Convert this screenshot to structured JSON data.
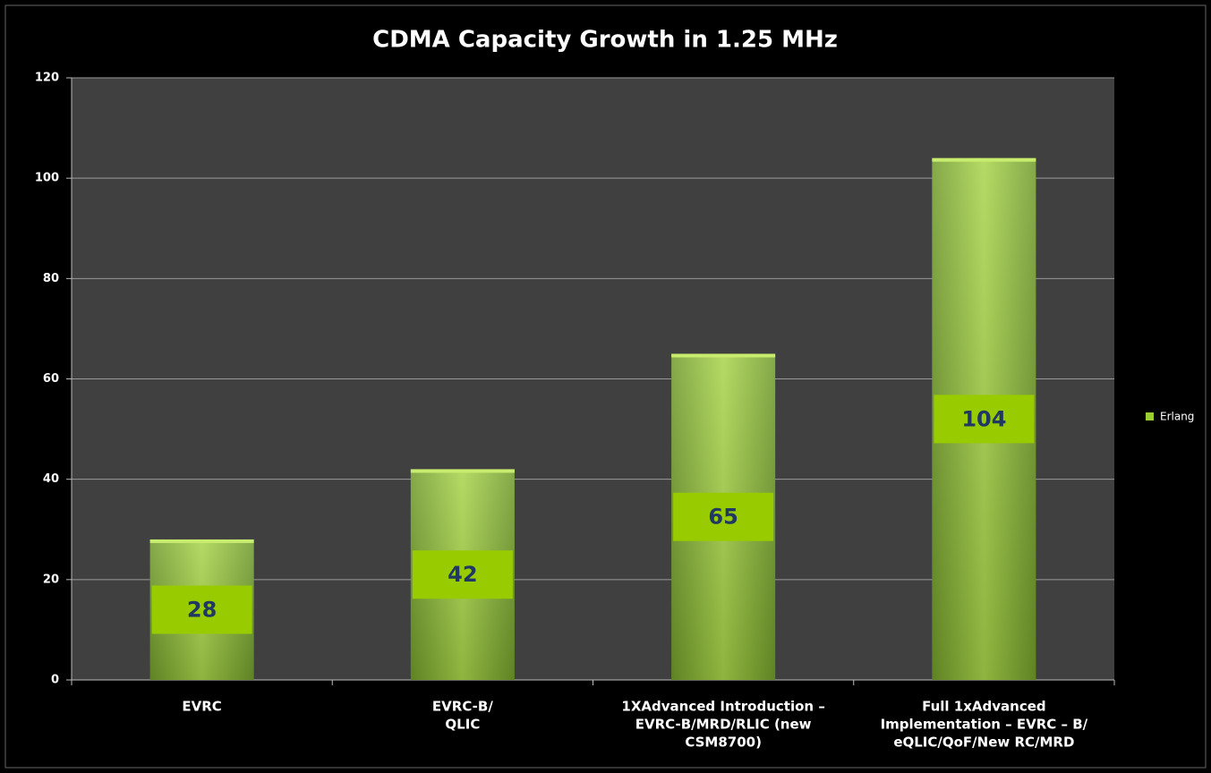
{
  "chart_data": {
    "type": "bar",
    "title": "CDMA Capacity Growth in 1.25 MHz",
    "categories": [
      [
        "EVRC"
      ],
      [
        "EVRC-B/",
        "QLIC"
      ],
      [
        "1XAdvanced Introduction –",
        "EVRC-B/MRD/RLIC (new",
        "CSM8700)"
      ],
      [
        "Full 1xAdvanced",
        "Implementation – EVRC – B/",
        "eQLIC/QoF/New RC/MRD"
      ]
    ],
    "series": [
      {
        "name": "Erlang",
        "color": "#9acd32",
        "values": [
          28,
          42,
          65,
          104
        ]
      }
    ],
    "ylim": [
      0,
      120
    ],
    "yticks": [
      0,
      20,
      40,
      60,
      80,
      100,
      120
    ],
    "grid": true,
    "legend": "right"
  }
}
